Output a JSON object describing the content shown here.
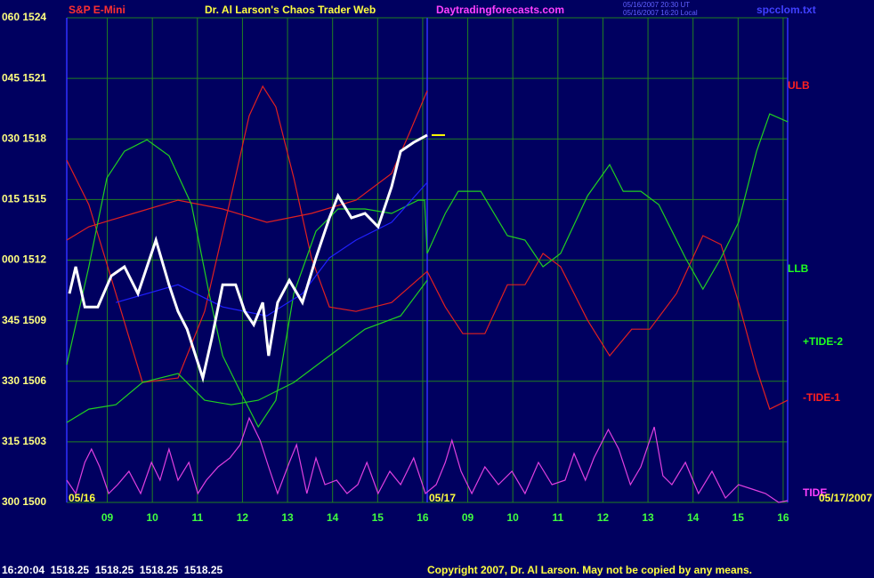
{
  "header": {
    "symbol": "S&P E-Mini",
    "title": "Dr. Al Larson's Chaos Trader Web",
    "site": "Daytradingforecasts.com",
    "time_ut": "05/16/2007 20:30 UT",
    "time_local": "05/16/2007 16:20 Local",
    "file": "spcclom.txt"
  },
  "footer": {
    "status": "16:20:04  1518.25  1518.25  1518.25  1518.25",
    "copyright": "Copyright 2007, Dr. Al Larson. May not be copied by any means."
  },
  "chart_data": {
    "type": "line",
    "xlim": [
      0,
      16
    ],
    "ylim": [
      1500,
      1524
    ],
    "yticks": [
      {
        "value": 1500,
        "label": "300 1500"
      },
      {
        "value": 1503,
        "label": "315 1503"
      },
      {
        "value": 1506,
        "label": "330 1506"
      },
      {
        "value": 1509,
        "label": "345 1509"
      },
      {
        "value": 1512,
        "label": "000 1512"
      },
      {
        "value": 1515,
        "label": "015 1515"
      },
      {
        "value": 1518,
        "label": "030 1518"
      },
      {
        "value": 1521,
        "label": "045 1521"
      },
      {
        "value": 1524,
        "label": "060 1524"
      }
    ],
    "xticks": [
      {
        "value": 0.9,
        "label": "09"
      },
      {
        "value": 1.9,
        "label": "10"
      },
      {
        "value": 2.9,
        "label": "11"
      },
      {
        "value": 3.9,
        "label": "12"
      },
      {
        "value": 4.9,
        "label": "13"
      },
      {
        "value": 5.9,
        "label": "14"
      },
      {
        "value": 6.9,
        "label": "15"
      },
      {
        "value": 7.9,
        "label": "16"
      },
      {
        "value": 8.9,
        "label": "09"
      },
      {
        "value": 9.9,
        "label": "10"
      },
      {
        "value": 10.9,
        "label": "11"
      },
      {
        "value": 11.9,
        "label": "12"
      },
      {
        "value": 12.9,
        "label": "13"
      },
      {
        "value": 13.9,
        "label": "14"
      },
      {
        "value": 14.9,
        "label": "15"
      },
      {
        "value": 15.9,
        "label": "16"
      }
    ],
    "date_labels": [
      "05/16",
      "05/17",
      "05/17/2007"
    ],
    "annotations": [
      {
        "text": "ULB",
        "color": "#ff2020"
      },
      {
        "text": "LLB",
        "color": "#20ff20"
      },
      {
        "text": "+TIDE-2",
        "color": "#20ff20"
      },
      {
        "text": "-TIDE-1",
        "color": "#ff2020"
      },
      {
        "text": "TIDE",
        "color": "#ff40ff"
      }
    ],
    "grid": true,
    "series": [
      {
        "color": "#e02020",
        "x": [
          0,
          0.49,
          1.48,
          2.47,
          3.46,
          4.44,
          5.43,
          6.42,
          7.21,
          7.6,
          8
        ],
        "values": [
          1512.99,
          1513.65,
          1514.31,
          1514.97,
          1514.53,
          1513.87,
          1514.31,
          1514.97,
          1516.29,
          1518.27,
          1520.39
        ]
      },
      {
        "color": "#e02020",
        "x": [
          0,
          0.49,
          1.09,
          1.68,
          2.47,
          3.06,
          3.65,
          4.05,
          4.35,
          4.64,
          5.04,
          5.43,
          5.83,
          6.42,
          7.21,
          8,
          8.4,
          8.79,
          9.28,
          9.78,
          10.17,
          10.57,
          10.96,
          11.56,
          12.05,
          12.54,
          12.94,
          13.53,
          14.12,
          14.52,
          14.91,
          15.31,
          15.6,
          16
        ],
        "values": [
          1516.95,
          1514.75,
          1510.34,
          1505.94,
          1506.16,
          1509.46,
          1515.19,
          1519.15,
          1520.61,
          1519.59,
          1516.07,
          1512.11,
          1509.68,
          1509.46,
          1509.9,
          1511.44,
          1509.68,
          1508.36,
          1508.36,
          1510.78,
          1510.78,
          1512.33,
          1511.67,
          1509.02,
          1507.26,
          1508.58,
          1508.58,
          1510.34,
          1513.21,
          1512.77,
          1509.9,
          1506.6,
          1504.62,
          1505.06
        ]
      },
      {
        "color": "#20d020",
        "x": [
          0,
          0.49,
          0.89,
          1.28,
          1.78,
          2.27,
          2.77,
          3.16,
          3.46,
          3.85,
          4.25,
          4.64,
          5.04,
          5.53,
          6.02,
          6.62,
          7.21,
          7.8,
          7.94,
          8,
          8.4,
          8.69,
          9.19,
          9.78,
          10.17,
          10.57,
          10.96,
          11.56,
          12.05,
          12.35,
          12.74,
          13.14,
          13.73,
          14.12,
          14.52,
          14.91,
          15.31,
          15.6,
          16
        ],
        "values": [
          1506.82,
          1511.67,
          1516.07,
          1517.39,
          1517.96,
          1517.17,
          1514.75,
          1510.34,
          1507.26,
          1505.5,
          1503.74,
          1505.06,
          1510.34,
          1513.43,
          1514.53,
          1514.53,
          1514.31,
          1514.97,
          1514.97,
          1512.33,
          1514.31,
          1515.41,
          1515.41,
          1513.21,
          1512.99,
          1511.67,
          1512.33,
          1515.19,
          1516.73,
          1515.41,
          1515.41,
          1514.75,
          1512.11,
          1510.56,
          1512.11,
          1513.87,
          1517.39,
          1519.24,
          1518.85
        ]
      },
      {
        "color": "#20d020",
        "x": [
          0,
          0.49,
          1.09,
          1.68,
          2.47,
          3.06,
          3.65,
          4.25,
          5.04,
          5.83,
          6.62,
          7.41,
          8
        ],
        "values": [
          1503.96,
          1504.62,
          1504.84,
          1505.94,
          1506.38,
          1505.06,
          1504.84,
          1505.06,
          1505.94,
          1507.26,
          1508.58,
          1509.24,
          1511.0
        ]
      },
      {
        "color": "#2020ff",
        "x": [
          1.09,
          2.47,
          3.46,
          4.44,
          5.23,
          5.83,
          6.42,
          7.21,
          8
        ],
        "values": [
          1509.9,
          1510.78,
          1509.68,
          1509.24,
          1510.34,
          1512.11,
          1512.99,
          1513.87,
          1515.85
        ]
      },
      {
        "color": "#e040e0",
        "x": [
          0,
          0.2,
          0.4,
          0.55,
          0.73,
          0.93,
          1.13,
          1.38,
          1.64,
          1.88,
          2.07,
          2.27,
          2.47,
          2.71,
          2.91,
          3.1,
          3.36,
          3.62,
          3.85,
          4.05,
          4.29,
          4.48,
          4.68,
          4.94,
          5.1,
          5.33,
          5.53,
          5.73,
          5.99,
          6.22,
          6.46,
          6.66,
          6.91,
          7.17,
          7.41,
          7.7,
          7.96,
          8.2,
          8.4,
          8.55,
          8.75,
          8.99,
          9.28,
          9.58,
          9.88,
          10.17,
          10.47,
          10.77,
          11.06,
          11.26,
          11.51,
          11.7,
          12.02,
          12.25,
          12.51,
          12.74,
          13.04,
          13.23,
          13.43,
          13.73,
          14.02,
          14.32,
          14.62,
          14.91,
          15.21,
          15.51,
          15.8,
          16
        ],
        "values": [
          1501.1,
          1500.44,
          1501.98,
          1502.64,
          1501.76,
          1500.44,
          1500.88,
          1501.54,
          1500.44,
          1501.98,
          1501.1,
          1502.64,
          1501.1,
          1501.98,
          1500.44,
          1501.1,
          1501.76,
          1502.2,
          1502.86,
          1504.18,
          1503.08,
          1501.76,
          1500.44,
          1501.98,
          1502.86,
          1500.44,
          1502.2,
          1500.88,
          1501.1,
          1500.44,
          1500.88,
          1501.98,
          1500.44,
          1501.54,
          1500.88,
          1502.2,
          1500.44,
          1500.88,
          1501.98,
          1503.08,
          1501.54,
          1500.44,
          1501.76,
          1500.88,
          1501.54,
          1500.44,
          1501.98,
          1500.88,
          1501.1,
          1502.42,
          1501.1,
          1502.2,
          1503.61,
          1502.64,
          1500.88,
          1501.76,
          1503.74,
          1501.32,
          1500.88,
          1501.98,
          1500.44,
          1501.54,
          1500.22,
          1500.88,
          1500.66,
          1500.44,
          1500,
          1500.09
        ]
      },
      {
        "color": "#ffffff",
        "x": [
          0.06,
          0.2,
          0.4,
          0.69,
          0.99,
          1.28,
          1.58,
          1.98,
          2.27,
          2.47,
          2.67,
          2.86,
          3.02,
          3.22,
          3.46,
          3.75,
          3.95,
          4.15,
          4.35,
          4.48,
          4.68,
          4.94,
          5.23,
          5.53,
          5.83,
          6.02,
          6.32,
          6.62,
          6.91,
          7.21,
          7.41,
          7.7,
          8
        ],
        "values": [
          1510.34,
          1511.67,
          1509.68,
          1509.68,
          1511.22,
          1511.67,
          1510.34,
          1512.99,
          1510.78,
          1509.46,
          1508.58,
          1507.26,
          1506.16,
          1508.14,
          1510.78,
          1510.78,
          1509.46,
          1508.8,
          1509.9,
          1507.26,
          1509.9,
          1511.0,
          1509.9,
          1512.11,
          1514.09,
          1515.19,
          1514.09,
          1514.31,
          1513.65,
          1515.63,
          1517.39,
          1517.83,
          1518.19
        ]
      }
    ]
  }
}
